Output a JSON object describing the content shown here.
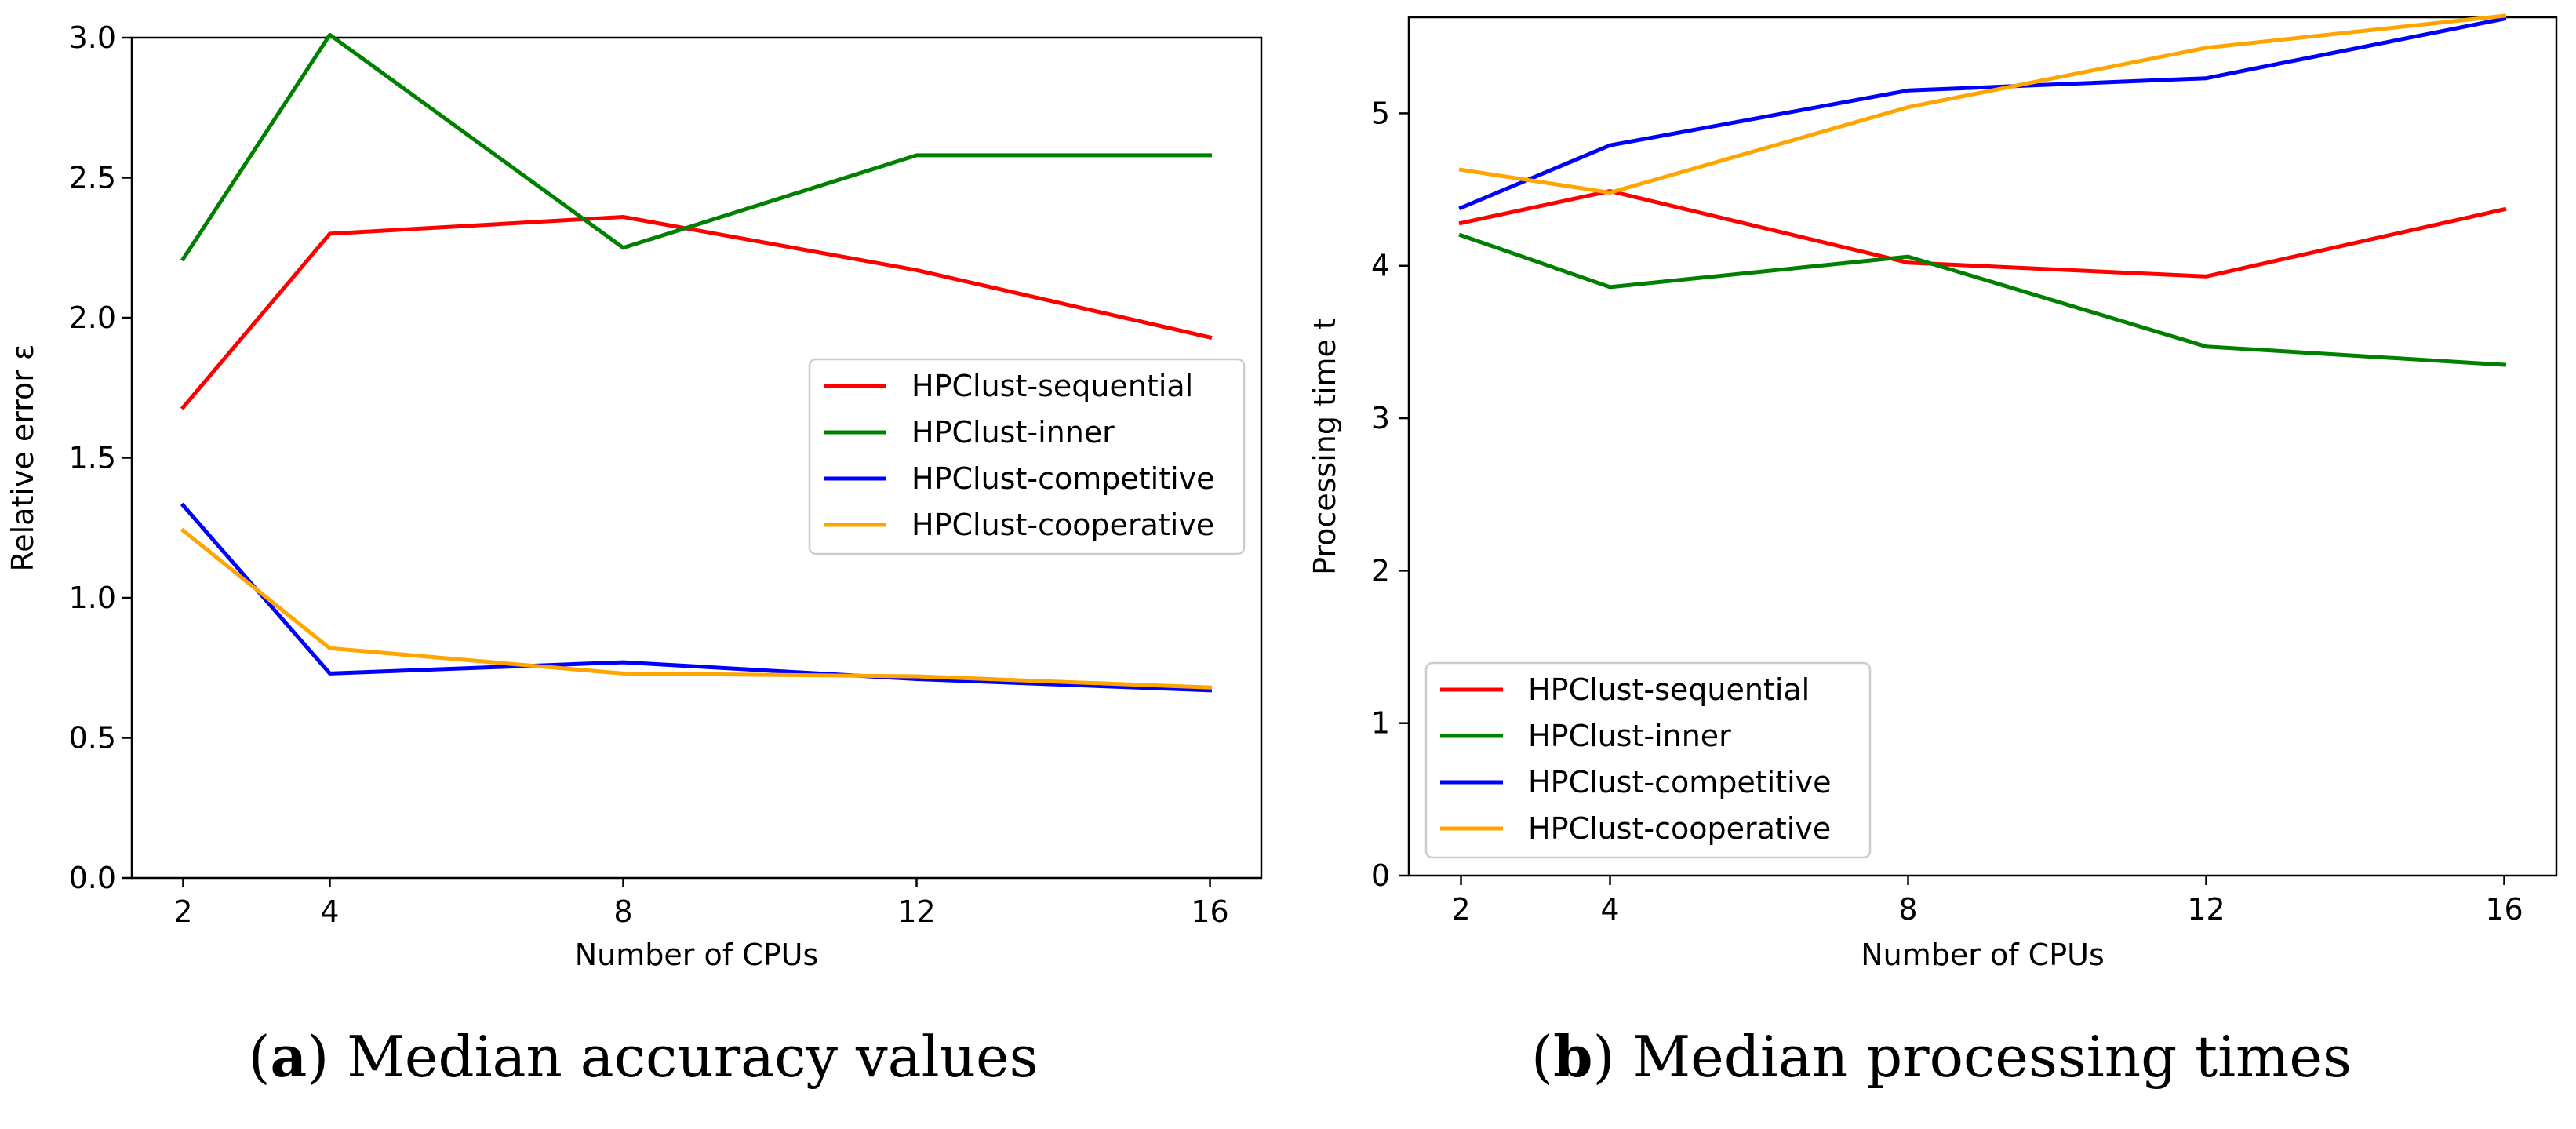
{
  "chart_data": [
    {
      "type": "line",
      "subfigure_label": "a",
      "caption": "Median accuracy values",
      "xlabel": "Number of CPUs",
      "ylabel": "Relative error ε",
      "x": [
        2,
        4,
        8,
        12,
        16
      ],
      "xticks": [
        2,
        4,
        8,
        12,
        16
      ],
      "xlim": [
        1.3,
        16.7
      ],
      "yticks": [
        0.0,
        0.5,
        1.0,
        1.5,
        2.0,
        2.5,
        3.0
      ],
      "ytick_labels": [
        "0.0",
        "0.5",
        "1.0",
        "1.5",
        "2.0",
        "2.5",
        "3.0"
      ],
      "ylim": [
        0.0,
        3.0
      ],
      "legend_position": "center-right",
      "series": [
        {
          "name": "HPClust-sequential",
          "color": "#ff0000",
          "values": [
            1.68,
            2.3,
            2.36,
            2.17,
            1.93
          ]
        },
        {
          "name": "HPClust-inner",
          "color": "#008000",
          "values": [
            2.21,
            3.01,
            2.25,
            2.58,
            2.58
          ]
        },
        {
          "name": "HPClust-competitive",
          "color": "#0000ff",
          "values": [
            1.33,
            0.73,
            0.77,
            0.71,
            0.67
          ]
        },
        {
          "name": "HPClust-cooperative",
          "color": "#ffa500",
          "values": [
            1.24,
            0.82,
            0.73,
            0.72,
            0.68
          ]
        }
      ]
    },
    {
      "type": "line",
      "subfigure_label": "b",
      "caption": "Median processing times",
      "xlabel": "Number of CPUs",
      "ylabel": "Processing time t",
      "x": [
        2,
        4,
        8,
        12,
        16
      ],
      "xticks": [
        2,
        4,
        8,
        12,
        16
      ],
      "xlim": [
        1.3,
        16.7
      ],
      "yticks": [
        0,
        1,
        2,
        3,
        4,
        5
      ],
      "ytick_labels": [
        "0",
        "1",
        "2",
        "3",
        "4",
        "5"
      ],
      "ylim": [
        0,
        5.63
      ],
      "legend_position": "lower-left",
      "series": [
        {
          "name": "HPClust-sequential",
          "color": "#ff0000",
          "values": [
            4.28,
            4.49,
            4.02,
            3.93,
            4.37
          ]
        },
        {
          "name": "HPClust-inner",
          "color": "#008000",
          "values": [
            4.2,
            3.86,
            4.06,
            3.47,
            3.35
          ]
        },
        {
          "name": "HPClust-competitive",
          "color": "#0000ff",
          "values": [
            4.38,
            4.79,
            5.15,
            5.23,
            5.62
          ]
        },
        {
          "name": "HPClust-cooperative",
          "color": "#ffa500",
          "values": [
            4.63,
            4.48,
            5.04,
            5.43,
            5.64
          ]
        }
      ]
    }
  ]
}
